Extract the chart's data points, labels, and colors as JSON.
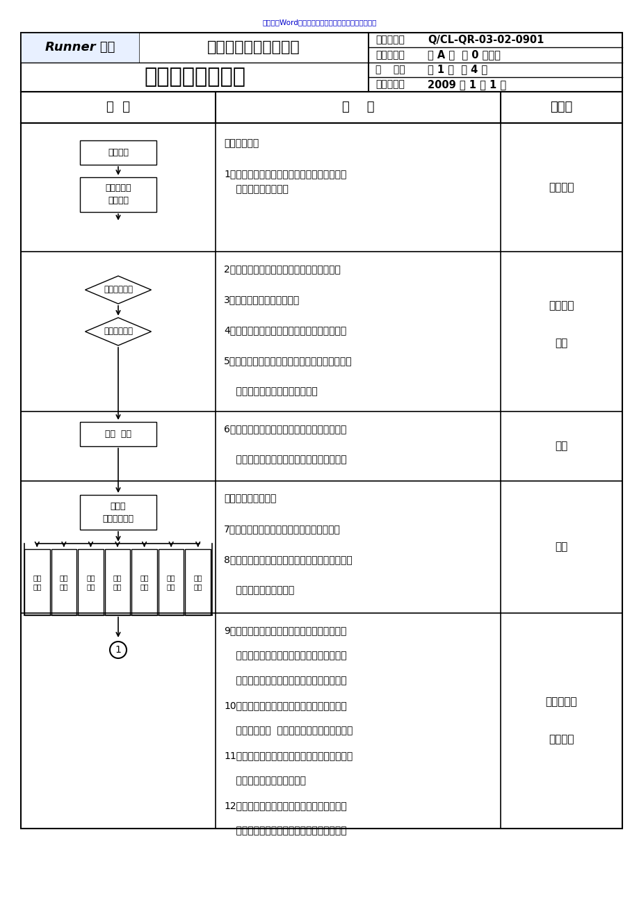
{
  "title_banner": "传播优秀Word版文档，希望对您有帮助，可双击去除！",
  "company_name": "江西润龙电器有限公司",
  "doc_title": "新产品开发流程表",
  "file_no_label": "文件编号：",
  "file_no_value": "Q/CL-QR-03-02-0901",
  "file_ver_label": "文件版本：",
  "file_ver_value": "第 A 版  第 0 次修改",
  "page_label": "页    码：",
  "page_value": "第 1 页  共 4 页",
  "date_label": "生效日期：",
  "date_value": "2009 年 1 月 1 日",
  "col_headers": [
    "流  程",
    "描    述",
    "责任人"
  ],
  "background": "#ffffff",
  "border_color": "#000000",
  "header_bg": "#f0f0f0"
}
